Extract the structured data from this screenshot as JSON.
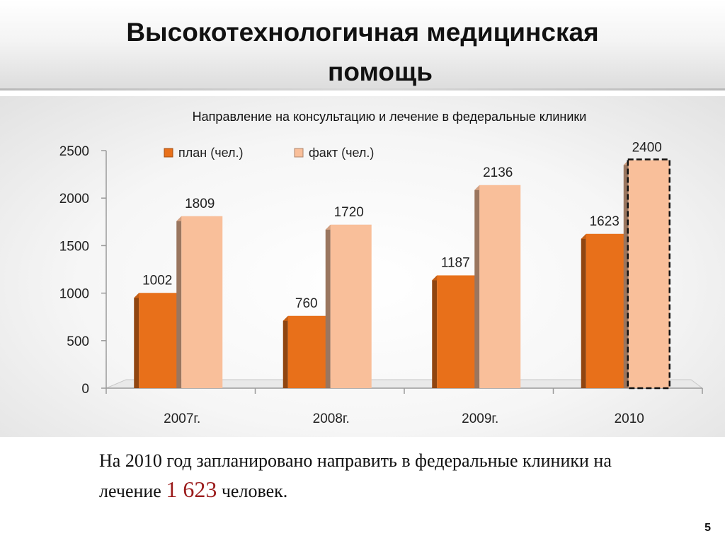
{
  "slide": {
    "title_line1": "Высокотехнологичная медицинская",
    "title_line2": "помощь",
    "caption_prefix": "На 2010 год запланировано направить в федеральные клиники на лечение",
    "caption_highlight": "1 623",
    "caption_suffix": "человек.",
    "page_number": "5"
  },
  "colors": {
    "plan": "#e8701a",
    "fact": "#f9bf9a",
    "highlight_text": "#9b1c1c"
  },
  "chart_data": {
    "type": "bar",
    "title": "Направление на консультацию и лечение в федеральные клиники",
    "xlabel": "",
    "ylabel": "",
    "categories": [
      "2007г.",
      "2008г.",
      "2009г.",
      "2010"
    ],
    "series": [
      {
        "name": "план (чел.)",
        "values": [
          1002,
          760,
          1187,
          1623
        ]
      },
      {
        "name": "факт (чел.)",
        "values": [
          1809,
          1720,
          2136,
          2400
        ]
      }
    ],
    "ylim": [
      0,
      2500
    ],
    "yticks": [
      0,
      500,
      1000,
      1500,
      2000,
      2500
    ],
    "grid": false,
    "legend_position": "top-left",
    "dashed_outline_bar": {
      "category": "2010",
      "series": "факт (чел.)"
    }
  }
}
